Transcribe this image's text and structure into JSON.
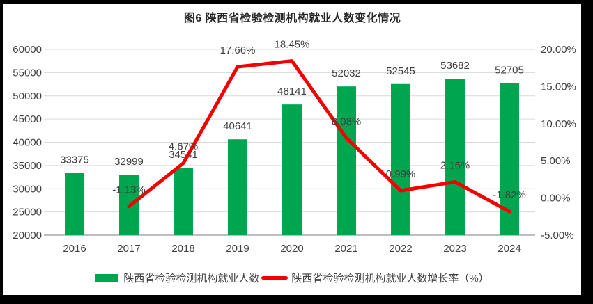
{
  "title": "图6 陕西省检验检测机构就业人数变化情况",
  "colors": {
    "bar": "#00A64F",
    "line": "#F40000",
    "label_text": "#404040",
    "title_text": "#262626",
    "grid": "#D9D9D9",
    "axis_line": "#BFBFBF",
    "background": "#FFFFFF",
    "frame": "#000000"
  },
  "legend": [
    {
      "label": "陕西省检验检测机构就业人数",
      "swatch": "bar-swatch",
      "color": "#00A64F"
    },
    {
      "label": "陕西省检验检测机构就业人数增长率（%）",
      "swatch": "line-swatch",
      "color": "#F40000"
    }
  ],
  "chart_data": {
    "type": "bar+line combo",
    "title": "图6 陕西省检验检测机构就业人数变化情况",
    "categories": [
      "2016",
      "2017",
      "2018",
      "2019",
      "2020",
      "2021",
      "2022",
      "2023",
      "2024"
    ],
    "series": [
      {
        "name": "陕西省检验检测机构就业人数",
        "type": "bar",
        "axis": "left",
        "values": [
          33375,
          32999,
          34541,
          40641,
          48141,
          52032,
          52545,
          53682,
          52705
        ],
        "labels": [
          "33375",
          "32999",
          "34541",
          "40641",
          "48141",
          "52032",
          "52545",
          "53682",
          "52705"
        ]
      },
      {
        "name": "陕西省检验检测机构就业人数增长率（%）",
        "type": "line",
        "axis": "right",
        "values": [
          null,
          -1.13,
          4.67,
          17.66,
          18.45,
          8.08,
          0.99,
          2.16,
          -1.82
        ],
        "labels": [
          null,
          "-1.13%",
          "4.67%",
          "17.66%",
          "18.45%",
          "8.08%",
          "0.99%",
          "2.16%",
          "-1.82%"
        ]
      }
    ],
    "left_axis": {
      "min": 20000,
      "max": 60000,
      "step": 5000,
      "ticks": [
        "60000",
        "55000",
        "50000",
        "45000",
        "40000",
        "35000",
        "30000",
        "25000",
        "20000"
      ]
    },
    "right_axis": {
      "min": -5,
      "max": 20,
      "step": 5,
      "ticks": [
        "20.00%",
        "15.00%",
        "10.00%",
        "5.00%",
        "0.00%",
        "-5.00%"
      ]
    },
    "grid": true,
    "legend_position": "bottom"
  }
}
